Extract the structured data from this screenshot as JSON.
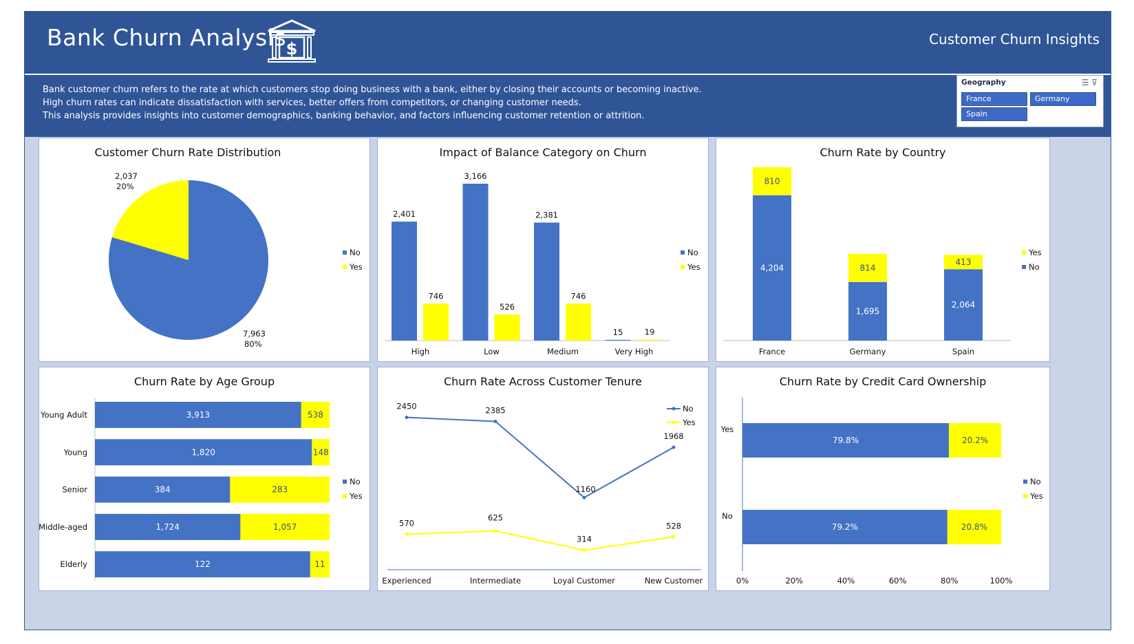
{
  "header": {
    "title": "Bank Churn Analysis",
    "subtitle": "Customer Churn Insights",
    "icon": "bank-dollar-icon"
  },
  "description": {
    "line1": "Bank customer churn refers to the rate at which customers stop doing business with a bank, either by closing their accounts or becoming inactive.",
    "line2": "High churn rates can indicate dissatisfaction with services, better offers from competitors, or changing customer needs.",
    "line3": "This analysis provides insights into customer demographics, banking behavior, and factors influencing customer retention or attrition."
  },
  "slicer": {
    "title": "Geography",
    "options": [
      "France",
      "Germany",
      "Spain"
    ]
  },
  "colors": {
    "no": "#4472c4",
    "yes": "#ffff00",
    "header": "#2f5597"
  },
  "chart_data": [
    {
      "type": "pie",
      "title": "Customer Churn Rate Distribution",
      "legend": [
        "No",
        "Yes"
      ],
      "slices": [
        {
          "name": "No",
          "value": 7963,
          "value_label": "7,963",
          "pct_label": "80%"
        },
        {
          "name": "Yes",
          "value": 2037,
          "value_label": "2,037",
          "pct_label": "20%"
        }
      ]
    },
    {
      "type": "bar",
      "title": "Impact of Balance Category on Churn",
      "categories": [
        "High",
        "Low",
        "Medium",
        "Very High"
      ],
      "series": [
        {
          "name": "No",
          "values": [
            2401,
            3166,
            2381,
            15
          ],
          "labels": [
            "2,401",
            "3,166",
            "2,381",
            "15"
          ]
        },
        {
          "name": "Yes",
          "values": [
            746,
            526,
            746,
            19
          ],
          "labels": [
            "746",
            "526",
            "746",
            "19"
          ]
        }
      ],
      "ylim": [
        0,
        3300
      ]
    },
    {
      "type": "bar",
      "title": "Churn Rate by Country",
      "categories": [
        "France",
        "Germany",
        "Spain"
      ],
      "stacked": true,
      "legend": [
        "Yes",
        "No"
      ],
      "series": [
        {
          "name": "No",
          "values": [
            4204,
            1695,
            2064
          ],
          "labels": [
            "4,204",
            "1,695",
            "2,064"
          ]
        },
        {
          "name": "Yes",
          "values": [
            810,
            814,
            413
          ],
          "labels": [
            "810",
            "814",
            "413"
          ]
        }
      ]
    },
    {
      "type": "bar",
      "title": "Churn Rate by Age Group",
      "orientation": "horizontal",
      "stacked": true,
      "categories": [
        "Young Adult",
        "Young",
        "Senior",
        "Middle-aged",
        "Elderly"
      ],
      "series": [
        {
          "name": "No",
          "values": [
            3913,
            1820,
            384,
            1724,
            122
          ],
          "labels": [
            "3,913",
            "1,820",
            "384",
            "1,724",
            "122"
          ]
        },
        {
          "name": "Yes",
          "values": [
            538,
            148,
            283,
            1057,
            11
          ],
          "labels": [
            "538",
            "148",
            "283",
            "1,057",
            "11"
          ]
        }
      ]
    },
    {
      "type": "line",
      "title": "Churn Rate Across Customer Tenure",
      "categories": [
        "Experienced",
        "Intermediate",
        "Loyal Customer",
        "New Customer"
      ],
      "series": [
        {
          "name": "No",
          "values": [
            2450,
            2385,
            1160,
            1968
          ],
          "labels": [
            "2450",
            "2385",
            "1160",
            "1968"
          ]
        },
        {
          "name": "Yes",
          "values": [
            570,
            625,
            314,
            528
          ],
          "labels": [
            "570",
            "625",
            "314",
            "528"
          ]
        }
      ],
      "ylim": [
        0,
        2700
      ]
    },
    {
      "type": "bar",
      "title": "Churn Rate by Credit Card Ownership",
      "orientation": "horizontal",
      "stacked": true,
      "percent": true,
      "categories": [
        "Yes",
        "No"
      ],
      "series": [
        {
          "name": "No",
          "values": [
            79.8,
            79.2
          ],
          "labels": [
            "79.8%",
            "79.2%"
          ]
        },
        {
          "name": "Yes",
          "values": [
            20.2,
            20.8
          ],
          "labels": [
            "20.2%",
            "20.8%"
          ]
        }
      ],
      "xticks": [
        "0%",
        "20%",
        "40%",
        "60%",
        "80%",
        "100%"
      ],
      "xlim": [
        0,
        100
      ]
    }
  ]
}
